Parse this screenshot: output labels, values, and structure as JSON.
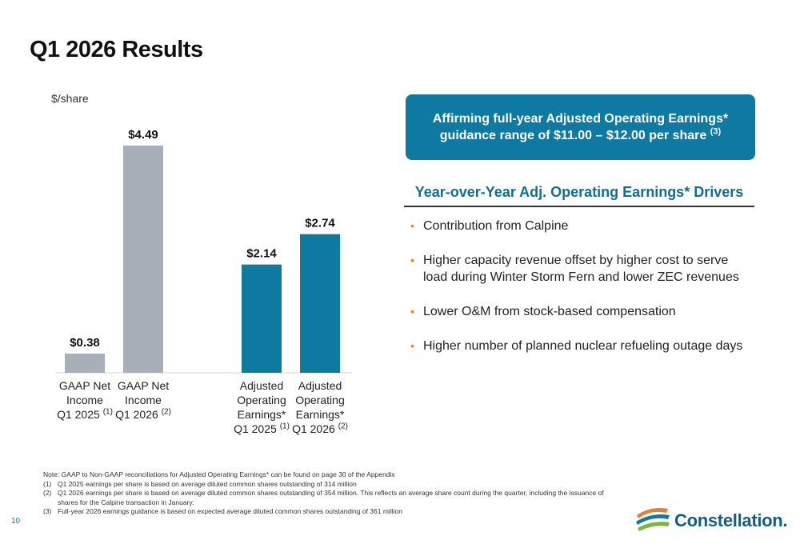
{
  "page": {
    "title": "Q1 2026 Results",
    "page_number": "10"
  },
  "chart_data": {
    "type": "bar",
    "ylabel": "$/share",
    "ylim": [
      0,
      4.49
    ],
    "categories": [
      {
        "line1": "GAAP Net",
        "line2": "Income",
        "line3": "",
        "period": "Q1 2025",
        "note": "(1)"
      },
      {
        "line1": "GAAP Net",
        "line2": "Income",
        "line3": "",
        "period": "Q1 2026",
        "note": "(2)"
      },
      {
        "line1": "Adjusted",
        "line2": "Operating",
        "line3": "Earnings*",
        "period": "Q1 2025",
        "note": "(1)"
      },
      {
        "line1": "Adjusted",
        "line2": "Operating",
        "line3": "Earnings*",
        "period": "Q1 2026",
        "note": "(2)"
      }
    ],
    "values": [
      0.38,
      4.49,
      2.14,
      2.74
    ],
    "value_labels": [
      "$0.38",
      "$4.49",
      "$2.14",
      "$2.74"
    ],
    "colors": [
      "#a7b0b8",
      "#a7b0b8",
      "#0e7aa1",
      "#0e7aa1"
    ]
  },
  "callout": {
    "line1": "Affirming full-year Adjusted Operating Earnings*",
    "line2": "guidance range of $11.00 – $12.00 per share",
    "note": "(3)"
  },
  "drivers": {
    "title": "Year-over-Year Adj. Operating Earnings* Drivers",
    "items": [
      "Contribution from Calpine",
      "Higher capacity revenue offset by higher cost to serve load during Winter Storm Fern and lower ZEC revenues",
      "Lower O&M from stock-based compensation",
      "Higher number of planned nuclear refueling outage days"
    ],
    "bullet": "•"
  },
  "notes": {
    "main": "Note: GAAP to Non-GAAP reconciliations for Adjusted Operating Earnings* can be found on page 30 of the Appendix",
    "footnotes": [
      {
        "num": "(1)",
        "text": "Q1 2025 earnings per share is based on average diluted common shares outstanding of 314 million"
      },
      {
        "num": "(2)",
        "text": "Q1 2026 earnings per share is based on average diluted common shares outstanding of 354 million. This reflects an average share count during the quarter, including the issuance of shares for the Calpine transaction in January."
      },
      {
        "num": "(3)",
        "text": "Full-year 2026 earnings guidance is based on expected average diluted common shares outstanding of 361 million"
      }
    ]
  },
  "logo": {
    "text": "Constellation.",
    "stripe_colors": [
      "#e0813a",
      "#0e7aa1",
      "#7fb241"
    ]
  }
}
